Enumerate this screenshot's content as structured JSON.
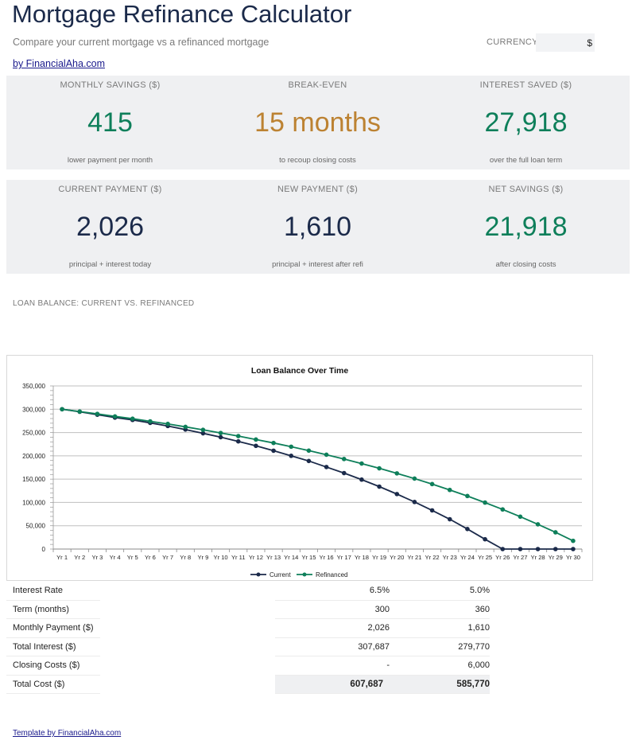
{
  "header": {
    "title": "Mortgage Refinance Calculator",
    "subtitle": "Compare your current mortgage vs a refinanced mortgage",
    "byline": "by FinancialAha.com",
    "currency_label": "CURRENCY",
    "currency_value": "$"
  },
  "kpis_top": [
    {
      "label": "MONTHLY SAVINGS ($)",
      "value": "415",
      "note": "lower payment per month"
    },
    {
      "label": "BREAK-EVEN",
      "value": "15 months",
      "note": "to recoup closing costs"
    },
    {
      "label": "INTEREST SAVED ($)",
      "value": "27,918",
      "note": "over the full loan term"
    }
  ],
  "kpis_bottom": [
    {
      "label": "CURRENT PAYMENT ($)",
      "value": "2,026",
      "note": "principal + interest today"
    },
    {
      "label": "NEW PAYMENT ($)",
      "value": "1,610",
      "note": "principal + interest after refi"
    },
    {
      "label": "NET SAVINGS ($)",
      "value": "21,918",
      "note": "after closing costs"
    }
  ],
  "colors": {
    "green": "#0e7f5a",
    "orange": "#bc8232",
    "navy": "#1b2a4a"
  },
  "section_label": "LOAN BALANCE: CURRENT VS. REFINANCED",
  "chart_data": {
    "type": "line",
    "title": "Loan Balance Over Time",
    "categories": [
      "Yr 1",
      "Yr 2",
      "Yr 3",
      "Yr 4",
      "Yr 5",
      "Yr 6",
      "Yr 7",
      "Yr 8",
      "Yr 9",
      "Yr 10",
      "Yr 11",
      "Yr 12",
      "Yr 13",
      "Yr 14",
      "Yr 15",
      "Yr 16",
      "Yr 17",
      "Yr 18",
      "Yr 19",
      "Yr 20",
      "Yr 21",
      "Yr 22",
      "Yr 23",
      "Yr 24",
      "Yr 25",
      "Yr 26",
      "Yr 27",
      "Yr 28",
      "Yr 29",
      "Yr 30"
    ],
    "series": [
      {
        "name": "Current",
        "color": "#1b2a4a",
        "values": [
          300000,
          294500,
          288300,
          282100,
          277000,
          270700,
          264000,
          256400,
          248300,
          240000,
          231000,
          221500,
          211000,
          200000,
          189000,
          176000,
          163000,
          149000,
          134000,
          118000,
          101000,
          83000,
          64000,
          43000,
          21000,
          0,
          0,
          0,
          0,
          0
        ]
      },
      {
        "name": "Refinanced",
        "color": "#0e7f5a",
        "values": [
          300000,
          295000,
          290000,
          284600,
          279700,
          274000,
          268500,
          262200,
          255800,
          249000,
          242400,
          235000,
          227600,
          219600,
          211200,
          202400,
          193200,
          183400,
          173200,
          162400,
          151200,
          139400,
          126800,
          113800,
          99700,
          85000,
          69500,
          53000,
          35900,
          17600
        ]
      }
    ],
    "ylim": [
      0,
      350000
    ],
    "yticks": [
      "0",
      "50,000",
      "100,000",
      "150,000",
      "200,000",
      "250,000",
      "300,000",
      "350,000"
    ],
    "ytick_values": [
      0,
      50000,
      100000,
      150000,
      200000,
      250000,
      300000,
      350000
    ],
    "grid": true,
    "legend": "bottom"
  },
  "summary": {
    "rows": [
      {
        "label": "Interest Rate",
        "current": "6.5%",
        "refi": "5.0%"
      },
      {
        "label": "Term (months)",
        "current": "300",
        "refi": "360"
      },
      {
        "label": "Monthly Payment ($)",
        "current": "2,026",
        "refi": "1,610"
      },
      {
        "label": "Total Interest ($)",
        "current": "307,687",
        "refi": "279,770"
      },
      {
        "label": "Closing Costs ($)",
        "current": "-",
        "refi": "6,000"
      },
      {
        "label": "Total Cost ($)",
        "current": "607,687",
        "refi": "585,770"
      }
    ]
  },
  "footer": {
    "link": "Template by FinancialAha.com"
  }
}
